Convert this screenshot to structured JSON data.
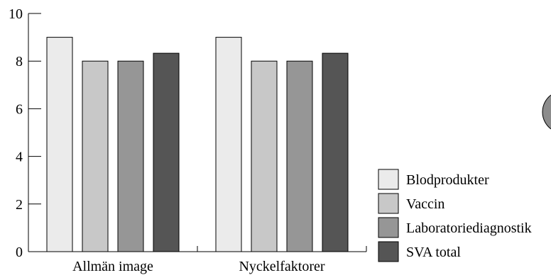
{
  "chart_data": {
    "type": "bar",
    "title": "",
    "xlabel": "",
    "ylabel": "",
    "ylim": [
      0,
      10
    ],
    "yticks": [
      0,
      2,
      4,
      6,
      8,
      10
    ],
    "grid": false,
    "legend_position": "right",
    "categories": [
      "Allmän image",
      "Nyckelfaktorer"
    ],
    "series": [
      {
        "name": "Blodprodukter",
        "color": "#ebebeb",
        "values": [
          9,
          9
        ]
      },
      {
        "name": "Vaccin",
        "color": "#c8c8c8",
        "values": [
          8,
          8
        ]
      },
      {
        "name": "Laboratoriediagnostik",
        "color": "#969696",
        "values": [
          8,
          8
        ]
      },
      {
        "name": "SVA total",
        "color": "#555555",
        "values": [
          8.33,
          8.33
        ]
      }
    ]
  }
}
